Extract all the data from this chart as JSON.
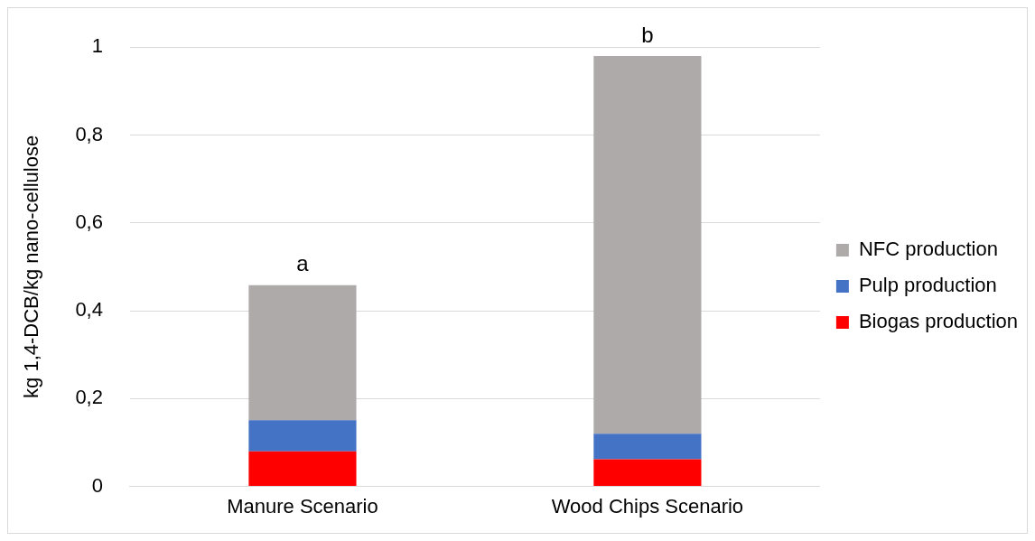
{
  "chart_data": {
    "type": "bar",
    "ylabel": "kg 1,4-DCB/kg nano-cellulose",
    "categories": [
      "Manure Scenario",
      "Wood Chips Scenario"
    ],
    "stacked": true,
    "series": [
      {
        "name": "Biogas production",
        "color": "#ff0000",
        "values": [
          0.08,
          0.062
        ]
      },
      {
        "name": "Pulp production",
        "color": "#4472c4",
        "values": [
          0.071,
          0.058
        ]
      },
      {
        "name": "NFC production",
        "color": "#aeaaaa",
        "values": [
          0.307,
          0.86
        ]
      }
    ],
    "ylim": [
      0,
      1
    ],
    "yticks": [
      0,
      {
        "value": 0.2,
        "label": "0,2"
      },
      {
        "value": 0.4,
        "label": "0,4"
      },
      {
        "value": 0.6,
        "label": "0,6"
      },
      {
        "value": 0.8,
        "label": "0,8"
      },
      1
    ],
    "grid": "y",
    "legend": "right",
    "annotations": [
      {
        "text": "a",
        "x": "Manure Scenario",
        "y": 0.458
      },
      {
        "text": "b",
        "x": "Wood Chips Scenario",
        "y": 0.98
      }
    ]
  }
}
